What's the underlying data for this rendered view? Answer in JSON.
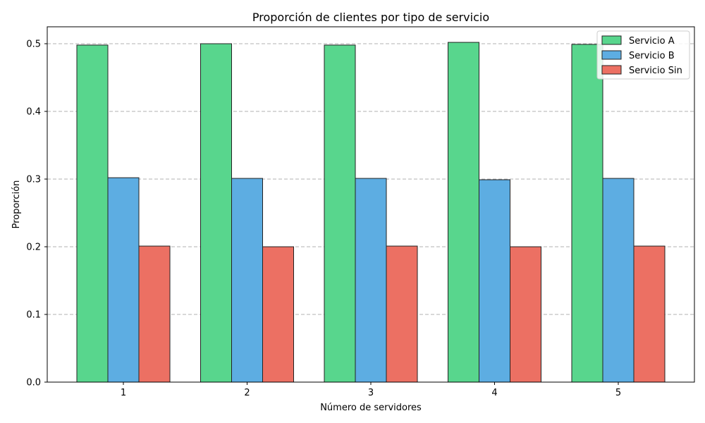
{
  "chart_data": {
    "type": "bar",
    "title": "Proporción de clientes por tipo de servicio",
    "xlabel": "Número de servidores",
    "ylabel": "Proporción",
    "categories": [
      "1",
      "2",
      "3",
      "4",
      "5"
    ],
    "series": [
      {
        "name": "Servicio A",
        "color": "#58d68d",
        "values": [
          0.498,
          0.5,
          0.498,
          0.502,
          0.499
        ]
      },
      {
        "name": "Servicio B",
        "color": "#5dade2",
        "values": [
          0.302,
          0.301,
          0.301,
          0.299,
          0.301
        ]
      },
      {
        "name": "Servicio Sin",
        "color": "#ec7063",
        "values": [
          0.201,
          0.2,
          0.201,
          0.2,
          0.201
        ]
      }
    ],
    "ylim": [
      0,
      0.525
    ],
    "yticks": [
      "0.0",
      "0.1",
      "0.2",
      "0.3",
      "0.4",
      "0.5"
    ],
    "grid": "y-dashed",
    "legend_position": "top-right"
  }
}
